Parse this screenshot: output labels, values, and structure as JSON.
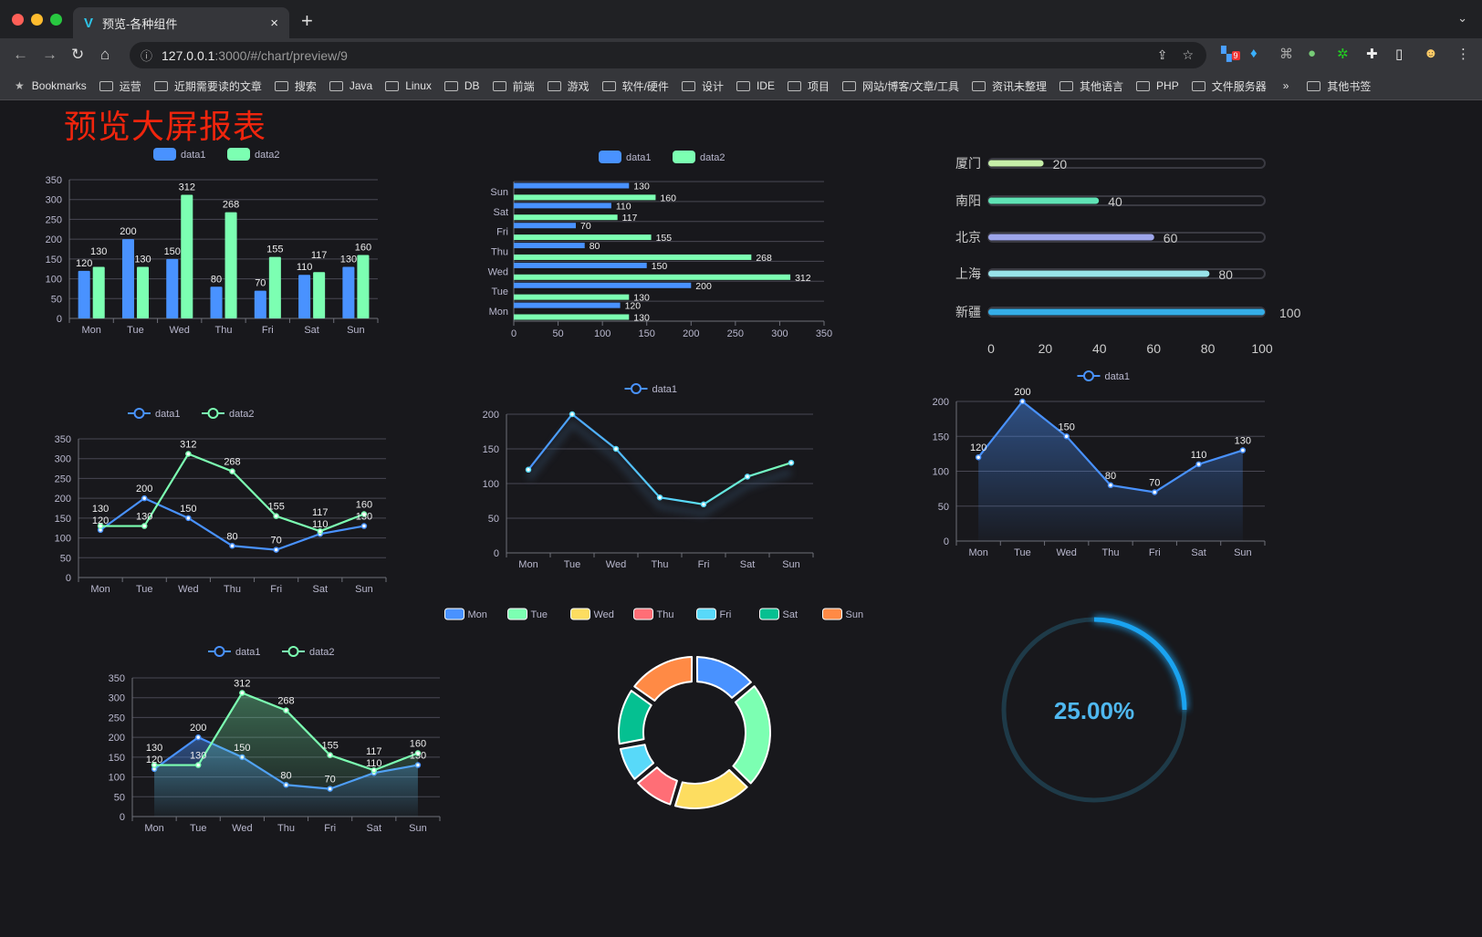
{
  "browser": {
    "tab_title": "预览-各种组件",
    "tab_close": "×",
    "new_tab": "+",
    "url_host": "127.0.0.1",
    "url_path": ":3000/#/chart/preview/9",
    "extension_badge": "9",
    "bookmarks": [
      "Bookmarks",
      "运营",
      "近期需要读的文章",
      "搜索",
      "Java",
      "Linux",
      "DB",
      "前端",
      "游戏",
      "软件/硬件",
      "设计",
      "IDE",
      "项目",
      "网站/博客/文章/工具",
      "资讯未整理",
      "其他语言",
      "PHP",
      "文件服务器"
    ],
    "bookmarks_overflow": "»",
    "other_bookmarks": "其他书签"
  },
  "page": {
    "title": "预览大屏报表",
    "title_color": "#f0250d"
  },
  "colors": {
    "data1": "#4992ff",
    "data2": "#7cffb2",
    "pie": [
      "#4992ff",
      "#7cffb2",
      "#fddd60",
      "#ff6e76",
      "#58d9f9",
      "#05c091",
      "#ff8a45"
    ]
  },
  "chart_data": [
    {
      "type": "bar",
      "categories": [
        "Mon",
        "Tue",
        "Wed",
        "Thu",
        "Fri",
        "Sat",
        "Sun"
      ],
      "series": [
        {
          "name": "data1",
          "values": [
            120,
            200,
            150,
            80,
            70,
            110,
            130
          ]
        },
        {
          "name": "data2",
          "values": [
            130,
            130,
            312,
            268,
            155,
            117,
            160
          ]
        }
      ],
      "ylim": [
        0,
        350
      ],
      "yticks": [
        0,
        50,
        100,
        150,
        200,
        250,
        300,
        350
      ],
      "legend": "top",
      "data_labels": true
    },
    {
      "type": "bar",
      "orientation": "horizontal",
      "categories": [
        "Mon",
        "Tue",
        "Wed",
        "Thu",
        "Fri",
        "Sat",
        "Sun"
      ],
      "series": [
        {
          "name": "data1",
          "values": [
            120,
            200,
            150,
            80,
            70,
            110,
            130
          ]
        },
        {
          "name": "data2",
          "values": [
            130,
            130,
            312,
            268,
            155,
            117,
            160
          ]
        }
      ],
      "xlim": [
        0,
        350
      ],
      "xticks": [
        0,
        50,
        100,
        150,
        200,
        250,
        300,
        350
      ],
      "legend": "top",
      "data_labels": true
    },
    {
      "type": "bar",
      "orientation": "horizontal",
      "style": "progress",
      "categories": [
        "厦门",
        "南阳",
        "北京",
        "上海",
        "新疆"
      ],
      "values": [
        20,
        40,
        60,
        80,
        100
      ],
      "colors": [
        "#c6eea8",
        "#5fe3b5",
        "#9da5ea",
        "#98e3ea",
        "#35aee8"
      ],
      "xlim": [
        0,
        100
      ],
      "xticks": [
        0,
        20,
        40,
        60,
        80,
        100
      ]
    },
    {
      "type": "line",
      "categories": [
        "Mon",
        "Tue",
        "Wed",
        "Thu",
        "Fri",
        "Sat",
        "Sun"
      ],
      "series": [
        {
          "name": "data1",
          "values": [
            120,
            200,
            150,
            80,
            70,
            110,
            130
          ]
        },
        {
          "name": "data2",
          "values": [
            130,
            130,
            312,
            268,
            155,
            117,
            160
          ]
        }
      ],
      "ylim": [
        0,
        350
      ],
      "yticks": [
        0,
        50,
        100,
        150,
        200,
        250,
        300,
        350
      ],
      "legend": "top",
      "data_labels": true
    },
    {
      "type": "line",
      "categories": [
        "Mon",
        "Tue",
        "Wed",
        "Thu",
        "Fri",
        "Sat",
        "Sun"
      ],
      "series": [
        {
          "name": "data1",
          "values": [
            120,
            200,
            150,
            80,
            70,
            110,
            130
          ]
        }
      ],
      "ylim": [
        0,
        200
      ],
      "yticks": [
        0,
        50,
        100,
        150,
        200
      ],
      "legend": "top",
      "data_labels": false
    },
    {
      "type": "area",
      "categories": [
        "Mon",
        "Tue",
        "Wed",
        "Thu",
        "Fri",
        "Sat",
        "Sun"
      ],
      "series": [
        {
          "name": "data1",
          "values": [
            120,
            200,
            150,
            80,
            70,
            110,
            130
          ]
        }
      ],
      "ylim": [
        0,
        200
      ],
      "yticks": [
        0,
        50,
        100,
        150,
        200
      ],
      "legend": "top",
      "data_labels": true
    },
    {
      "type": "area",
      "categories": [
        "Mon",
        "Tue",
        "Wed",
        "Thu",
        "Fri",
        "Sat",
        "Sun"
      ],
      "series": [
        {
          "name": "data1",
          "values": [
            120,
            200,
            150,
            80,
            70,
            110,
            130
          ]
        },
        {
          "name": "data2",
          "values": [
            130,
            130,
            312,
            268,
            155,
            117,
            160
          ]
        }
      ],
      "ylim": [
        0,
        350
      ],
      "yticks": [
        0,
        50,
        100,
        150,
        200,
        250,
        300,
        350
      ],
      "legend": "top",
      "data_labels": true
    },
    {
      "type": "pie",
      "style": "donut",
      "categories": [
        "Mon",
        "Tue",
        "Wed",
        "Thu",
        "Fri",
        "Sat",
        "Sun"
      ],
      "values": [
        120,
        200,
        150,
        80,
        70,
        110,
        130
      ],
      "legend": "top"
    },
    {
      "type": "gauge",
      "style": "progress-ring",
      "value": 25,
      "label": "25.00%"
    }
  ]
}
